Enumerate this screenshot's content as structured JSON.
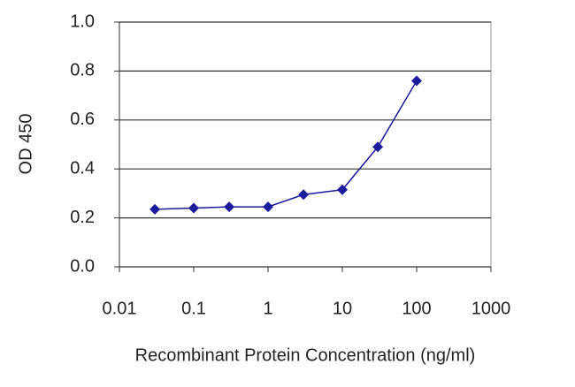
{
  "chart_data": {
    "type": "line",
    "xlabel": "Recombinant Protein Concentration (ng/ml)",
    "ylabel": "OD 450",
    "xlog": true,
    "grid": true,
    "x": [
      0.03,
      0.1,
      0.3,
      1,
      3,
      10,
      30,
      100
    ],
    "series": [
      {
        "name": "OD 450",
        "color": "#1a1a9c",
        "values": [
          0.235,
          0.24,
          0.245,
          0.245,
          0.295,
          0.315,
          0.49,
          0.76
        ]
      }
    ],
    "xlim": [
      0.01,
      1000
    ],
    "xticks": [
      0.01,
      0.1,
      1,
      10,
      100,
      1000
    ],
    "ylim": [
      0,
      1
    ],
    "yticks": [
      {
        "value": 0,
        "label": "0.0"
      },
      0.2,
      0.4,
      0.6,
      0.8,
      {
        "value": 1,
        "label": "1.0"
      }
    ]
  }
}
